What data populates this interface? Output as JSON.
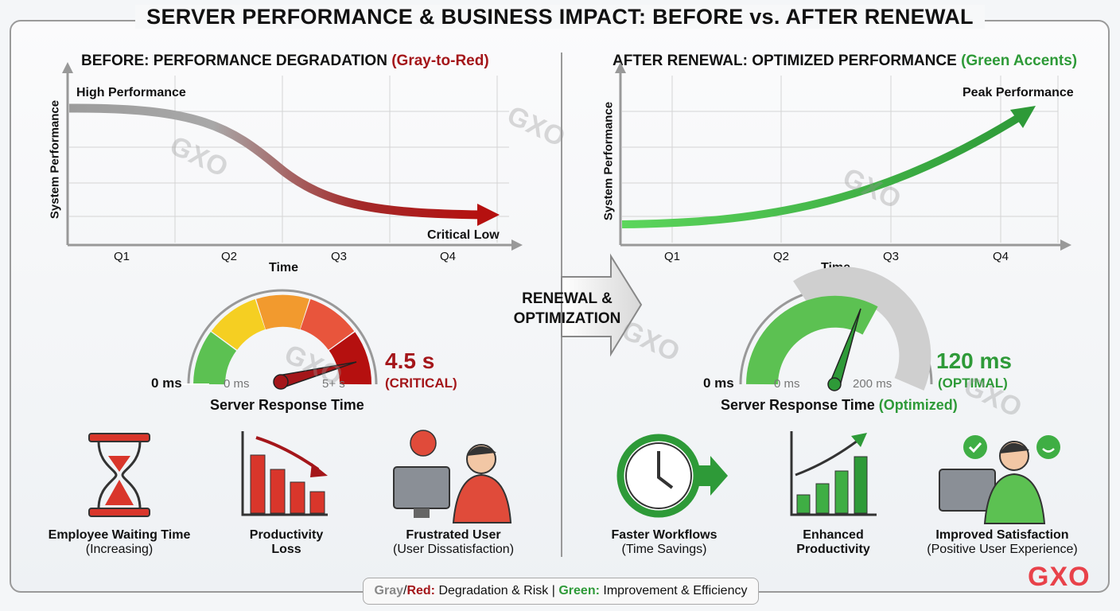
{
  "title": "SERVER PERFORMANCE & BUSINESS IMPACT: BEFORE vs. AFTER RENEWAL",
  "before": {
    "heading": "BEFORE: PERFORMANCE DEGRADATION",
    "heading_accent": "(Gray-to-Red)",
    "chart": {
      "ylabel": "System Performance",
      "xlabel": "Time",
      "ticks": [
        "Q1",
        "Q2",
        "Q3",
        "Q4"
      ],
      "start_label": "High Performance",
      "end_label": "Critical Low",
      "trend": "declining"
    },
    "gauge": {
      "min_outer": "0 ms",
      "min_inner": "0 ms",
      "max_inner": "5+ s",
      "value": "4.5 s",
      "status": "(CRITICAL)",
      "caption": "Server Response Time",
      "segment_colors": [
        "#5cc152",
        "#f5cf22",
        "#f29a2e",
        "#e8553c",
        "#b5100f"
      ]
    },
    "impacts": [
      {
        "label": "Employee Waiting Time",
        "sub": "(Increasing)",
        "icon": "hourglass-icon"
      },
      {
        "label": "Productivity",
        "sub": "Loss",
        "icon": "declining-bar-chart-icon"
      },
      {
        "label": "Frustrated User",
        "sub": "(User Dissatisfaction)",
        "icon": "frustrated-user-icon"
      }
    ]
  },
  "transition": {
    "label": "RENEWAL &\nOPTIMIZATION",
    "line1": "RENEWAL &",
    "line2": "OPTIMIZATION"
  },
  "after": {
    "heading": "AFTER RENEWAL: OPTIMIZED PERFORMANCE",
    "heading_accent": "(Green Accents)",
    "chart": {
      "ylabel": "System Performance",
      "xlabel": "Time",
      "ticks": [
        "Q1",
        "Q2",
        "Q3",
        "Q4"
      ],
      "end_label": "Peak Performance",
      "trend": "rising"
    },
    "gauge": {
      "min_outer": "0 ms",
      "min_inner": "0 ms",
      "max_inner": "200 ms",
      "value": "120 ms",
      "status": "(OPTIMAL)",
      "caption": "Server Response Time",
      "caption_accent": "(Optimized)",
      "fill_fraction": 0.6
    },
    "impacts": [
      {
        "label": "Faster Workflows",
        "sub": "(Time Savings)",
        "icon": "clock-arrow-icon"
      },
      {
        "label": "Enhanced",
        "sub": "Productivity",
        "icon": "rising-bar-chart-icon"
      },
      {
        "label": "Improved Satisfaction",
        "sub": "(Positive User Experience)",
        "icon": "happy-user-icon"
      }
    ]
  },
  "legend": {
    "gray": "Gray",
    "slash": "/",
    "red": "Red:",
    "red_text": " Degradation & Risk | ",
    "green": "Green:",
    "green_text": " Improvement & Efficiency"
  },
  "watermark": "GXO",
  "logo": "GXO",
  "colors": {
    "red": "#a4161a",
    "green": "#2e9a38",
    "gray": "#9a9a9a"
  }
}
